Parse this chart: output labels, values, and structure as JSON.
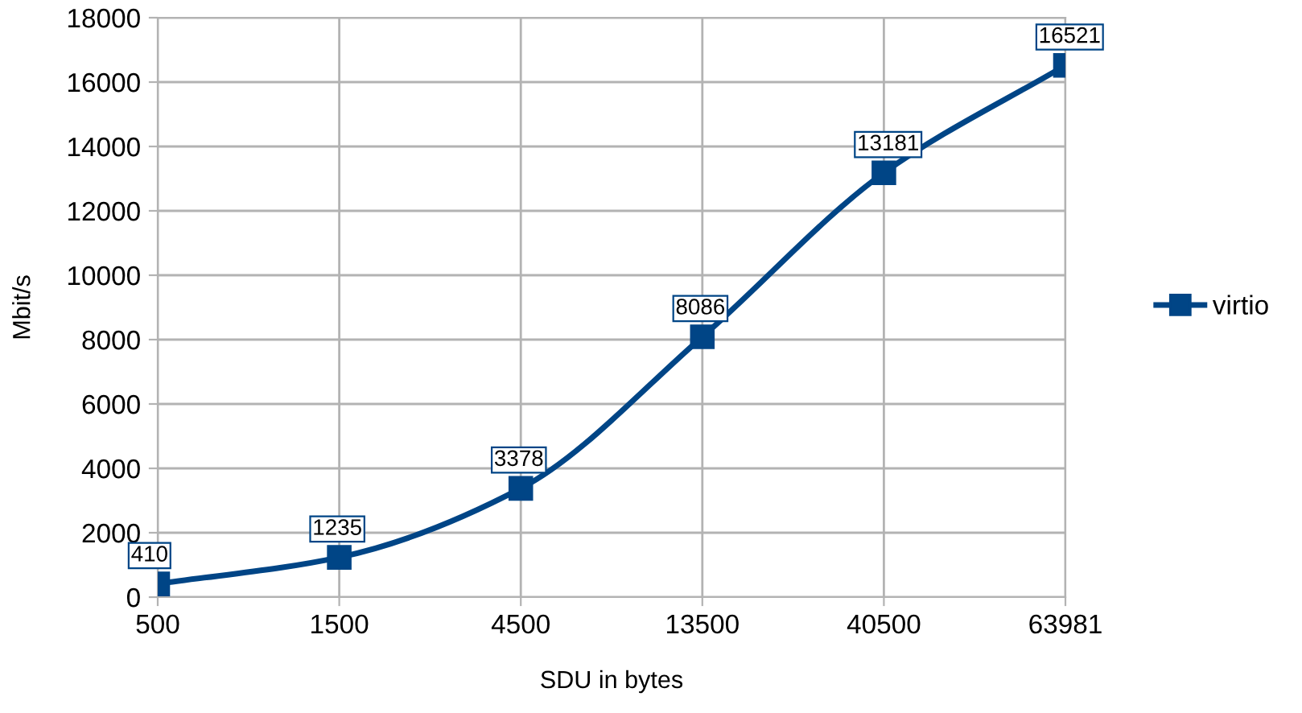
{
  "chart_data": {
    "type": "line",
    "xlabel": "SDU in bytes",
    "ylabel": "Mbit/s",
    "categories": [
      "500",
      "1500",
      "4500",
      "13500",
      "40500",
      "63981"
    ],
    "series": [
      {
        "name": "virtio",
        "color": "#004586",
        "values": [
          410,
          1235,
          3378,
          8086,
          13181,
          16521
        ]
      }
    ],
    "ylim": [
      0,
      18000
    ],
    "yticks": [
      0,
      2000,
      4000,
      6000,
      8000,
      10000,
      12000,
      14000,
      16000,
      18000
    ],
    "grid": true,
    "legend": "right",
    "marker": "square",
    "line_style": "solid",
    "data_labels": true
  }
}
